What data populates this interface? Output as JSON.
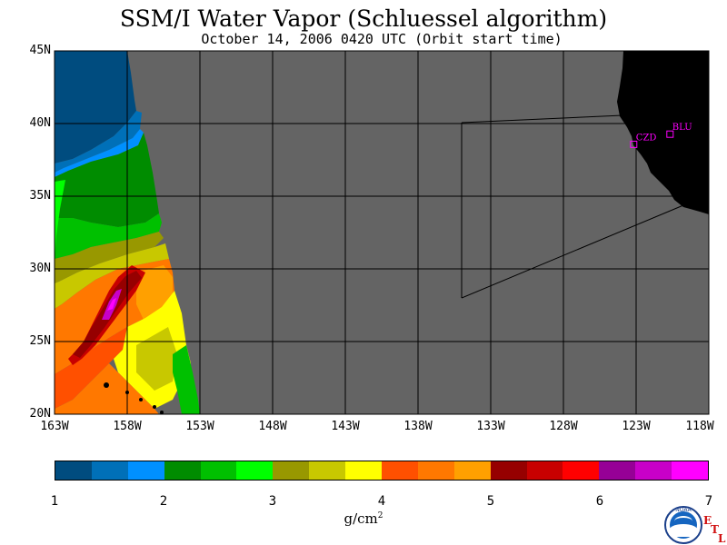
{
  "title": "SSM/I Water Vapor (Schluessel algorithm)",
  "subtitle": "October 14, 2006  0420 UTC  (Orbit start time)",
  "lat_labels": [
    "45N",
    "40N",
    "35N",
    "30N",
    "25N",
    "20N"
  ],
  "lon_labels": [
    "163W",
    "158W",
    "153W",
    "148W",
    "143W",
    "138W",
    "133W",
    "128W",
    "123W",
    "118W"
  ],
  "map_extent": {
    "lon_min": -163,
    "lon_max": -118,
    "lat_min": 20,
    "lat_max": 45
  },
  "stations": [
    {
      "name": "CZD",
      "lat": 38.6,
      "lon": -123.2
    },
    {
      "name": "BLU",
      "lat": 39.3,
      "lon": -120.7
    }
  ],
  "colorbar": {
    "ticks": [
      "1",
      "2",
      "3",
      "4",
      "5",
      "6",
      "7"
    ],
    "units_base": "g/cm",
    "units_exp": "2",
    "colors": [
      "#004c7f",
      "#0070b8",
      "#0090ff",
      "#008c00",
      "#00c000",
      "#00ff00",
      "#989800",
      "#c8c800",
      "#ffff00",
      "#ff5000",
      "#ff7800",
      "#ffa000",
      "#960000",
      "#c80000",
      "#ff0000",
      "#960096",
      "#c800c8",
      "#ff00ff"
    ]
  },
  "colors": {
    "no_data": "#646464",
    "land": "#000000",
    "station": "#ff00ff"
  },
  "logo": {
    "noaa_text": "NOAA",
    "etl_letters": [
      "E",
      "T",
      "L"
    ]
  }
}
